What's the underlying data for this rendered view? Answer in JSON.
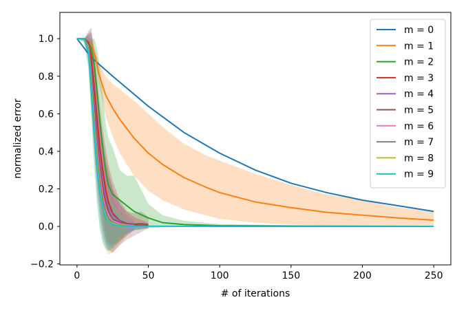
{
  "chart_data": {
    "type": "line",
    "xlabel": "# of iterations",
    "ylabel": "normalized error",
    "xlim": [
      -12,
      262
    ],
    "ylim": [
      -0.205,
      1.14
    ],
    "xticks": [
      0,
      50,
      100,
      150,
      200,
      250
    ],
    "yticks": [
      -0.2,
      0.0,
      0.2,
      0.4,
      0.6,
      0.8,
      1.0
    ],
    "xtick_labels": [
      "0",
      "50",
      "100",
      "150",
      "200",
      "250"
    ],
    "ytick_labels": [
      "−0.2",
      "0.0",
      "0.2",
      "0.4",
      "0.6",
      "0.8",
      "1.0"
    ],
    "grid": false,
    "legend_position": "top-right",
    "series": [
      {
        "name": "m = 0",
        "color": "#1f77b4",
        "x": [
          0,
          10,
          25,
          50,
          75,
          100,
          125,
          150,
          175,
          200,
          225,
          250
        ],
        "y": [
          1.0,
          0.9,
          0.8,
          0.64,
          0.5,
          0.39,
          0.3,
          0.23,
          0.18,
          0.14,
          0.11,
          0.08
        ]
      },
      {
        "name": "m = 1",
        "color": "#ff7f0e",
        "x": [
          0,
          5,
          10,
          13,
          15,
          20,
          25,
          30,
          40,
          50,
          60,
          75,
          90,
          100,
          125,
          150,
          175,
          200,
          225,
          250
        ],
        "y": [
          1.0,
          1.0,
          0.97,
          0.9,
          0.82,
          0.7,
          0.63,
          0.57,
          0.47,
          0.39,
          0.33,
          0.26,
          0.21,
          0.18,
          0.13,
          0.1,
          0.075,
          0.06,
          0.045,
          0.033
        ],
        "band_lower": [
          1.0,
          1.0,
          0.97,
          0.87,
          0.77,
          0.59,
          0.48,
          0.39,
          0.27,
          0.19,
          0.14,
          0.09,
          0.06,
          0.04,
          0.02,
          0.01,
          0.005,
          0.002,
          0.001,
          0.0
        ],
        "band_upper": [
          1.0,
          1.0,
          0.98,
          0.93,
          0.88,
          0.8,
          0.76,
          0.73,
          0.67,
          0.6,
          0.53,
          0.44,
          0.38,
          0.35,
          0.28,
          0.22,
          0.17,
          0.14,
          0.1,
          0.08
        ]
      },
      {
        "name": "m = 2",
        "color": "#2ca02c",
        "x": [
          0,
          5,
          8,
          10,
          12,
          14,
          16,
          18,
          20,
          22,
          25,
          30,
          35,
          40,
          50,
          60,
          75,
          100,
          150,
          200,
          250
        ],
        "y": [
          1.0,
          1.0,
          0.98,
          0.95,
          0.86,
          0.72,
          0.56,
          0.42,
          0.3,
          0.22,
          0.17,
          0.14,
          0.11,
          0.08,
          0.045,
          0.02,
          0.01,
          0.004,
          0.002,
          0.001,
          0.0
        ],
        "band_lower": [
          1.0,
          1.0,
          0.96,
          0.85,
          0.6,
          0.35,
          0.2,
          0.05,
          -0.06,
          -0.1,
          -0.1,
          -0.08,
          -0.05,
          -0.02,
          -0.01,
          -0.005,
          0.0,
          -0.003,
          -0.002,
          -0.001,
          0.0
        ],
        "band_upper": [
          1.0,
          1.0,
          1.0,
          1.0,
          1.0,
          0.95,
          0.85,
          0.72,
          0.55,
          0.47,
          0.42,
          0.3,
          0.27,
          0.27,
          0.12,
          0.06,
          0.03,
          0.012,
          0.006,
          0.004,
          0.002
        ]
      },
      {
        "name": "m = 3",
        "color": "#d62728",
        "x": [
          0,
          5,
          8,
          10,
          12,
          14,
          16,
          18,
          20,
          22,
          25,
          30,
          35,
          40,
          50
        ],
        "y": [
          1.0,
          1.0,
          0.98,
          0.9,
          0.75,
          0.58,
          0.42,
          0.3,
          0.2,
          0.13,
          0.07,
          0.03,
          0.015,
          0.008,
          0.004
        ],
        "band_lower": [
          1.0,
          0.99,
          0.92,
          0.75,
          0.55,
          0.35,
          0.2,
          0.08,
          -0.02,
          -0.08,
          -0.1,
          -0.07,
          -0.04,
          -0.02,
          -0.01
        ],
        "band_upper": [
          1.0,
          1.0,
          1.02,
          1.03,
          0.95,
          0.8,
          0.65,
          0.52,
          0.42,
          0.33,
          0.24,
          0.14,
          0.08,
          0.05,
          0.02
        ]
      },
      {
        "name": "m = 4",
        "color": "#9467bd",
        "x": [
          0,
          5,
          8,
          10,
          12,
          14,
          16,
          18,
          20,
          22,
          25,
          30,
          35,
          40
        ],
        "y": [
          1.0,
          1.0,
          0.97,
          0.85,
          0.68,
          0.5,
          0.35,
          0.24,
          0.16,
          0.1,
          0.06,
          0.025,
          0.012,
          0.005
        ],
        "band_lower": [
          1.0,
          0.99,
          0.9,
          0.7,
          0.45,
          0.25,
          0.1,
          0.0,
          -0.06,
          -0.1,
          -0.12,
          -0.08,
          -0.04,
          -0.02
        ],
        "band_upper": [
          1.0,
          1.0,
          1.03,
          1.04,
          0.92,
          0.77,
          0.6,
          0.48,
          0.38,
          0.3,
          0.2,
          0.12,
          0.06,
          0.03
        ]
      },
      {
        "name": "m = 5",
        "color": "#8c564b",
        "x": [
          0,
          5,
          8,
          10,
          12,
          14,
          16,
          18,
          20,
          22,
          25,
          30,
          35,
          40,
          45,
          50
        ],
        "y": [
          1.0,
          1.0,
          0.97,
          0.84,
          0.65,
          0.47,
          0.32,
          0.21,
          0.13,
          0.08,
          0.04,
          0.02,
          0.015,
          0.012,
          0.015,
          0.01
        ],
        "band_lower": [
          1.0,
          0.99,
          0.92,
          0.72,
          0.48,
          0.27,
          0.12,
          0.0,
          -0.08,
          -0.12,
          -0.14,
          -0.1,
          -0.07,
          -0.05,
          -0.03,
          -0.01
        ],
        "band_upper": [
          1.0,
          1.0,
          1.04,
          1.06,
          0.92,
          0.74,
          0.58,
          0.45,
          0.35,
          0.28,
          0.2,
          0.12,
          0.08,
          0.07,
          0.08,
          0.05
        ]
      },
      {
        "name": "m = 6",
        "color": "#e377c2",
        "x": [
          0,
          5,
          8,
          10,
          12,
          14,
          16,
          18,
          20,
          22,
          25,
          30,
          35,
          40
        ],
        "y": [
          1.0,
          1.0,
          0.96,
          0.8,
          0.6,
          0.42,
          0.28,
          0.17,
          0.1,
          0.06,
          0.03,
          0.015,
          0.008,
          0.004
        ],
        "band_lower": [
          1.0,
          0.99,
          0.9,
          0.68,
          0.42,
          0.22,
          0.07,
          -0.04,
          -0.1,
          -0.13,
          -0.14,
          -0.1,
          -0.05,
          -0.02
        ],
        "band_upper": [
          1.0,
          1.0,
          1.02,
          0.95,
          0.82,
          0.66,
          0.5,
          0.38,
          0.3,
          0.24,
          0.18,
          0.1,
          0.05,
          0.03
        ]
      },
      {
        "name": "m = 7",
        "color": "#7f7f7f",
        "x": [
          0,
          5,
          8,
          10,
          12,
          14,
          16,
          18,
          20,
          22,
          25,
          30,
          35
        ],
        "y": [
          1.0,
          1.0,
          0.95,
          0.78,
          0.57,
          0.38,
          0.24,
          0.14,
          0.08,
          0.04,
          0.02,
          0.01,
          0.005
        ],
        "band_lower": [
          1.0,
          0.99,
          0.88,
          0.65,
          0.4,
          0.2,
          0.05,
          -0.05,
          -0.1,
          -0.13,
          -0.12,
          -0.08,
          -0.04
        ],
        "band_upper": [
          1.0,
          1.0,
          1.02,
          0.93,
          0.78,
          0.6,
          0.45,
          0.34,
          0.26,
          0.2,
          0.15,
          0.08,
          0.04
        ]
      },
      {
        "name": "m = 8",
        "color": "#bcbd22",
        "x": [
          0,
          5,
          8,
          10,
          12,
          14,
          16,
          18,
          20,
          22,
          25,
          30,
          35
        ],
        "y": [
          1.0,
          1.0,
          0.94,
          0.75,
          0.53,
          0.34,
          0.2,
          0.11,
          0.06,
          0.03,
          0.015,
          0.008,
          0.004
        ],
        "band_lower": [
          1.0,
          0.98,
          0.85,
          0.6,
          0.35,
          0.15,
          0.0,
          -0.08,
          -0.12,
          -0.15,
          -0.14,
          -0.09,
          -0.04
        ],
        "band_upper": [
          1.0,
          1.0,
          1.02,
          0.92,
          0.74,
          0.55,
          0.4,
          0.3,
          0.22,
          0.18,
          0.12,
          0.07,
          0.04
        ]
      },
      {
        "name": "m = 9",
        "color": "#17becf",
        "x": [
          0,
          5,
          8,
          10,
          12,
          14,
          16,
          18,
          20,
          22,
          25,
          30,
          35,
          50,
          100,
          150,
          200,
          250
        ],
        "y": [
          1.0,
          1.0,
          0.93,
          0.72,
          0.5,
          0.31,
          0.18,
          0.1,
          0.05,
          0.025,
          0.01,
          0.005,
          0.002,
          0.001,
          0.0,
          0.0,
          0.0,
          0.0
        ],
        "band_lower": [
          1.0,
          0.98,
          0.84,
          0.58,
          0.32,
          0.12,
          -0.02,
          -0.09,
          -0.12,
          -0.13,
          -0.11,
          -0.06,
          -0.03,
          -0.005,
          0.0,
          0.0,
          0.0,
          0.0
        ],
        "band_upper": [
          1.0,
          1.0,
          1.02,
          0.9,
          0.7,
          0.5,
          0.36,
          0.27,
          0.2,
          0.16,
          0.11,
          0.06,
          0.03,
          0.005,
          0.0,
          0.0,
          0.0,
          0.0
        ]
      }
    ]
  }
}
